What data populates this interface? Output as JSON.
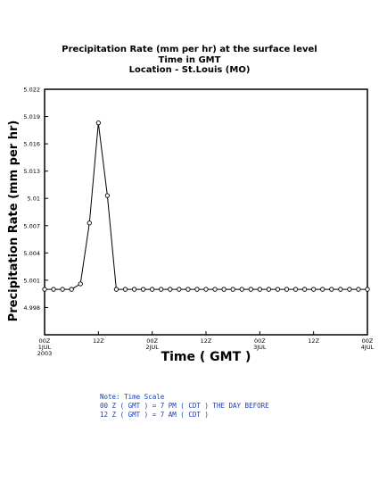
{
  "chart_data": {
    "type": "line",
    "title_lines": [
      "Precipitation Rate (mm per hr) at the surface level",
      "Time in GMT",
      "Location - St.Louis (MO)"
    ],
    "xlabel": "Time ( GMT )",
    "ylabel": "Precipitation Rate (mm per hr)",
    "ylim": [
      4.995,
      5.022
    ],
    "yticks": [
      4.998,
      5.001,
      5.004,
      5.007,
      5.01,
      5.013,
      5.016,
      5.019,
      5.022
    ],
    "ytick_labels": [
      "4.998",
      "5.001",
      "5.004",
      "5.007",
      "5.01",
      "5.013",
      "5.016",
      "5.019",
      "5.022"
    ],
    "x_unit": "hours since 00Z 1 JUL 2003",
    "xlim": [
      0,
      72
    ],
    "xticks": [
      {
        "x": 0,
        "lines": [
          "00Z",
          "1JUL",
          "2003"
        ]
      },
      {
        "x": 12,
        "lines": [
          "12Z"
        ]
      },
      {
        "x": 24,
        "lines": [
          "00Z",
          "2JUL"
        ]
      },
      {
        "x": 36,
        "lines": [
          "12Z"
        ]
      },
      {
        "x": 48,
        "lines": [
          "00Z",
          "3JUL"
        ]
      },
      {
        "x": 60,
        "lines": [
          "12Z"
        ]
      },
      {
        "x": 72,
        "lines": [
          "00Z",
          "4JUL"
        ]
      }
    ],
    "grid": false,
    "series": [
      {
        "x": [
          0,
          2,
          4,
          6,
          8,
          10,
          12,
          14,
          16,
          18,
          20,
          22,
          24,
          26,
          28,
          30,
          32,
          34,
          36,
          38,
          40,
          42,
          44,
          46,
          48,
          50,
          52,
          54,
          56,
          58,
          60,
          62,
          64,
          66,
          68,
          70,
          72
        ],
        "y": [
          5.0,
          5.0,
          5.0,
          5.0,
          5.0006,
          5.0073,
          5.0183,
          5.0103,
          5.0,
          5.0,
          5.0,
          5.0,
          5.0,
          5.0,
          5.0,
          5.0,
          5.0,
          5.0,
          5.0,
          5.0,
          5.0,
          5.0,
          5.0,
          5.0,
          5.0,
          5.0,
          5.0,
          5.0,
          5.0,
          5.0,
          5.0,
          5.0,
          5.0,
          5.0,
          5.0,
          5.0,
          5.0
        ],
        "color": "#000000",
        "marker": "open-circle"
      }
    ]
  },
  "notes": [
    "Note: Time Scale",
    "00 Z ( GMT ) = 7 PM ( CDT ) THE DAY BEFORE",
    "12 Z ( GMT ) = 7 AM ( CDT )"
  ],
  "colors": {
    "note_text": "#1a3fb5",
    "line": "#000000"
  }
}
